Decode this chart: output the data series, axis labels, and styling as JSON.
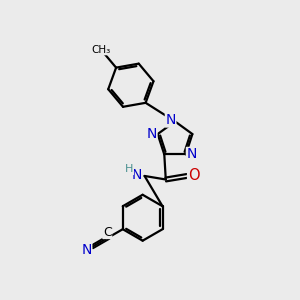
{
  "bg_color": "#ebebeb",
  "bond_color": "#000000",
  "bond_width": 1.6,
  "atom_colors": {
    "C": "#000000",
    "N": "#0000cc",
    "O": "#cc0000",
    "H": "#4a9090"
  },
  "font_size": 8.5,
  "fig_size": [
    3.0,
    3.0
  ],
  "dpi": 100,
  "xlim": [
    0,
    10
  ],
  "ylim": [
    0,
    10
  ]
}
